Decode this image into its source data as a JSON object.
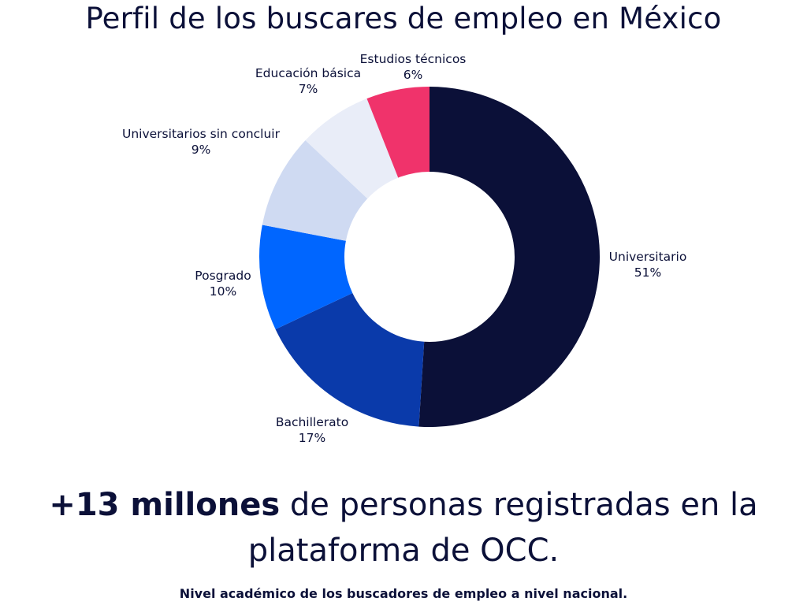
{
  "header": {
    "title": "Perfil de los buscares de empleo en México"
  },
  "chart_data": {
    "type": "pie",
    "donut": true,
    "title": "Perfil de los buscares de empleo en México",
    "start_category": "Universitario",
    "direction": "clockwise",
    "categories": [
      "Universitario",
      "Bachillerato",
      "Posgrado",
      "Universitarios sin concluir",
      "Educación básica",
      "Estudios técnicos"
    ],
    "values": [
      51,
      17,
      10,
      9,
      7,
      6
    ],
    "labels": [
      "51%",
      "17%",
      "10%",
      "9%",
      "7%",
      "6%"
    ],
    "colors": [
      "#0b1038",
      "#0a3aaa",
      "#0066ff",
      "#cfdaf2",
      "#e9edf8",
      "#f0336b"
    ],
    "legend": "none"
  },
  "headline": {
    "bold": "+13 millones",
    "rest": " de personas registradas en la",
    "line2": "plataforma de OCC."
  },
  "footnote": "Nivel académico de los buscadores de empleo a nivel nacional."
}
